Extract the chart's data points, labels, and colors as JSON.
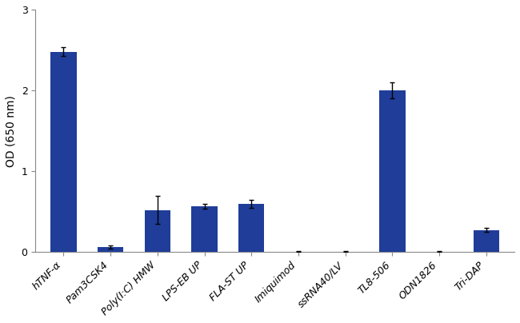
{
  "categories": [
    "hTNF-α",
    "Pam3CSK4",
    "Poly(I:C) HMW",
    "LPS-EB UP",
    "FLA-ST UP",
    "Imiquimod",
    "ssRNA40/LV",
    "TL8-506",
    "ODN1826",
    "Tri-DAP"
  ],
  "values": [
    2.48,
    0.06,
    0.52,
    0.57,
    0.6,
    0.005,
    0.005,
    2.0,
    0.005,
    0.27
  ],
  "errors": [
    0.055,
    0.02,
    0.17,
    0.03,
    0.05,
    0.003,
    0.003,
    0.1,
    0.003,
    0.025
  ],
  "bar_color": "#1f3d99",
  "ylabel": "OD (650 nm)",
  "ylim": [
    0,
    3.0
  ],
  "yticks": [
    0,
    1,
    2,
    3
  ],
  "background_color": "#ffffff",
  "error_color": "#000000",
  "bar_width": 0.55,
  "ylabel_fontsize": 10,
  "tick_fontsize": 9,
  "xlabel_fontsize": 9
}
